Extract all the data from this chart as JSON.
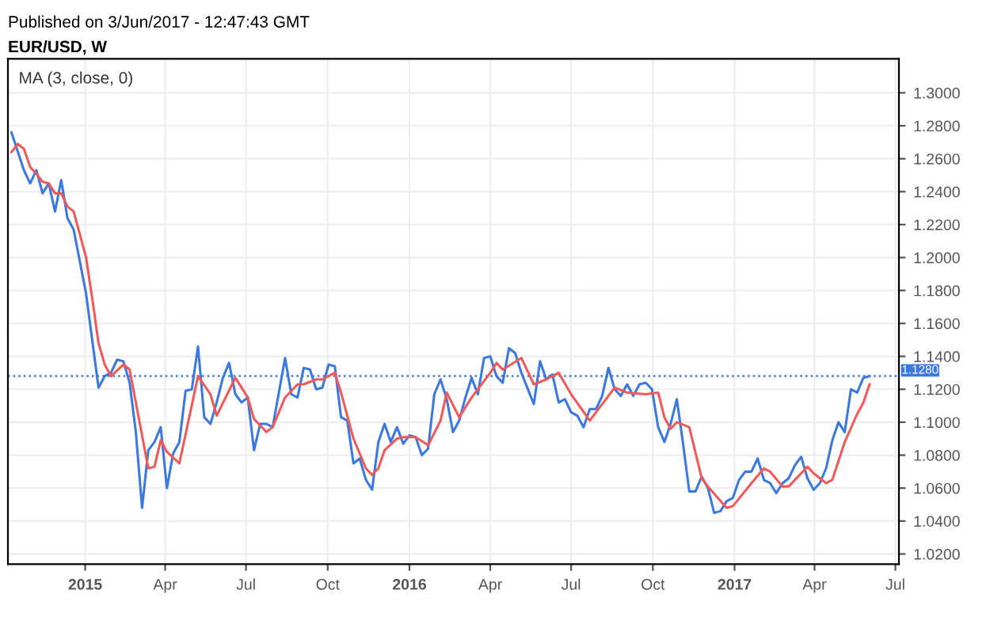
{
  "chart_data": {
    "type": "line",
    "title": "Published on 3/Jun/2017 - 12:47:43 GMT",
    "subtitle": "EUR/USD, W",
    "annotations": [
      "MA (3, close, 0)"
    ],
    "series": [
      {
        "color": "#3b78e0",
        "x": [
          "2014-10-10",
          "2014-10-24",
          "2014-10-31",
          "2014-11-07",
          "2014-11-14",
          "2014-11-21",
          "2014-11-28",
          "2014-12-05",
          "2014-12-12",
          "2014-12-19",
          "2015-01-02",
          "2015-01-16",
          "2015-01-23",
          "2015-01-30",
          "2015-02-06",
          "2015-02-13",
          "2015-02-20",
          "2015-02-27",
          "2015-03-06",
          "2015-03-13",
          "2015-03-20",
          "2015-03-27",
          "2015-04-03",
          "2015-04-10",
          "2015-04-17",
          "2015-04-24",
          "2015-05-01",
          "2015-05-08",
          "2015-05-15",
          "2015-05-22",
          "2015-05-29",
          "2015-06-05",
          "2015-06-12",
          "2015-06-19",
          "2015-06-26",
          "2015-07-03",
          "2015-07-10",
          "2015-07-17",
          "2015-07-24",
          "2015-07-31",
          "2015-08-07",
          "2015-08-14",
          "2015-08-21",
          "2015-08-28",
          "2015-09-04",
          "2015-09-11",
          "2015-09-18",
          "2015-09-25",
          "2015-10-02",
          "2015-10-09",
          "2015-10-16",
          "2015-10-23",
          "2015-10-30",
          "2015-11-06",
          "2015-11-13",
          "2015-11-20",
          "2015-11-27",
          "2015-12-04",
          "2015-12-11",
          "2015-12-18",
          "2015-12-25",
          "2016-01-01",
          "2016-01-08",
          "2016-01-15",
          "2016-01-22",
          "2016-01-29",
          "2016-02-05",
          "2016-02-12",
          "2016-02-19",
          "2016-02-26",
          "2016-03-04",
          "2016-03-11",
          "2016-03-18",
          "2016-03-25",
          "2016-04-01",
          "2016-04-08",
          "2016-04-15",
          "2016-04-22",
          "2016-04-29",
          "2016-05-06",
          "2016-05-20",
          "2016-05-27",
          "2016-06-03",
          "2016-06-10",
          "2016-06-17",
          "2016-06-24",
          "2016-07-01",
          "2016-07-08",
          "2016-07-15",
          "2016-07-22",
          "2016-07-29",
          "2016-08-05",
          "2016-08-12",
          "2016-08-19",
          "2016-08-26",
          "2016-09-02",
          "2016-09-09",
          "2016-09-16",
          "2016-09-23",
          "2016-09-30",
          "2016-10-07",
          "2016-10-14",
          "2016-10-21",
          "2016-10-28",
          "2016-11-04",
          "2016-11-11",
          "2016-11-18",
          "2016-11-25",
          "2016-12-02",
          "2016-12-09",
          "2016-12-16",
          "2016-12-23",
          "2016-12-30",
          "2017-01-06",
          "2017-01-13",
          "2017-01-20",
          "2017-01-27",
          "2017-02-03",
          "2017-02-10",
          "2017-02-17",
          "2017-02-24",
          "2017-03-03",
          "2017-03-10",
          "2017-03-17",
          "2017-03-24",
          "2017-03-31",
          "2017-04-07",
          "2017-04-14",
          "2017-04-21",
          "2017-04-28",
          "2017-05-05",
          "2017-05-12",
          "2017-05-19",
          "2017-05-26",
          "2017-06-02"
        ],
        "values": [
          1.276,
          1.253,
          1.245,
          1.253,
          1.239,
          1.245,
          1.228,
          1.247,
          1.224,
          1.217,
          1.178,
          1.121,
          1.128,
          1.13,
          1.138,
          1.137,
          1.124,
          1.094,
          1.048,
          1.083,
          1.088,
          1.097,
          1.06,
          1.081,
          1.088,
          1.119,
          1.12,
          1.146,
          1.103,
          1.099,
          1.112,
          1.127,
          1.136,
          1.117,
          1.112,
          1.115,
          1.083,
          1.099,
          1.099,
          1.097,
          1.118,
          1.139,
          1.117,
          1.115,
          1.133,
          1.132,
          1.12,
          1.121,
          1.135,
          1.134,
          1.103,
          1.101,
          1.075,
          1.078,
          1.065,
          1.059,
          1.088,
          1.099,
          1.088,
          1.097,
          1.087,
          1.092,
          1.091,
          1.08,
          1.084,
          1.117,
          1.126,
          1.114,
          1.094,
          1.101,
          1.115,
          1.127,
          1.117,
          1.139,
          1.14,
          1.128,
          1.124,
          1.145,
          1.142,
          1.13,
          1.111,
          1.137,
          1.126,
          1.129,
          1.112,
          1.114,
          1.106,
          1.104,
          1.097,
          1.108,
          1.108,
          1.116,
          1.133,
          1.12,
          1.116,
          1.123,
          1.116,
          1.123,
          1.124,
          1.12,
          1.097,
          1.088,
          1.099,
          1.114,
          1.087,
          1.058,
          1.058,
          1.067,
          1.06,
          1.045,
          1.046,
          1.052,
          1.054,
          1.065,
          1.07,
          1.07,
          1.078,
          1.065,
          1.063,
          1.057,
          1.063,
          1.066,
          1.074,
          1.079,
          1.066,
          1.059,
          1.063,
          1.072,
          1.089,
          1.1,
          1.094,
          1.12,
          1.118,
          1.127,
          1.128
        ]
      },
      {
        "color": "#f25a5a",
        "x": [
          "2014-10-10",
          "2014-10-17",
          "2014-10-24",
          "2014-10-31",
          "2014-11-07",
          "2014-11-14",
          "2014-11-21",
          "2014-11-28",
          "2014-12-05",
          "2014-12-12",
          "2014-12-19",
          "2015-01-02",
          "2015-01-09",
          "2015-01-16",
          "2015-01-23",
          "2015-01-30",
          "2015-02-13",
          "2015-02-20",
          "2015-02-27",
          "2015-03-13",
          "2015-03-20",
          "2015-03-27",
          "2015-04-03",
          "2015-04-17",
          "2015-05-08",
          "2015-05-22",
          "2015-05-29",
          "2015-06-19",
          "2015-07-03",
          "2015-07-10",
          "2015-07-24",
          "2015-07-31",
          "2015-08-14",
          "2015-08-28",
          "2015-09-04",
          "2015-09-18",
          "2015-09-25",
          "2015-10-09",
          "2015-10-16",
          "2015-10-30",
          "2015-11-13",
          "2015-11-20",
          "2015-11-27",
          "2015-12-04",
          "2015-12-18",
          "2015-12-25",
          "2016-01-08",
          "2016-01-22",
          "2016-02-05",
          "2016-02-12",
          "2016-02-26",
          "2016-03-11",
          "2016-04-01",
          "2016-04-08",
          "2016-04-15",
          "2016-05-06",
          "2016-05-20",
          "2016-06-03",
          "2016-06-17",
          "2016-07-01",
          "2016-07-22",
          "2016-07-29",
          "2016-08-19",
          "2016-09-02",
          "2016-09-23",
          "2016-10-07",
          "2016-10-14",
          "2016-10-21",
          "2016-10-28",
          "2016-11-11",
          "2016-11-25",
          "2016-12-02",
          "2016-12-23",
          "2016-12-30",
          "2017-01-20",
          "2017-02-03",
          "2017-02-10",
          "2017-02-24",
          "2017-03-03",
          "2017-03-24",
          "2017-03-31",
          "2017-04-14",
          "2017-04-21",
          "2017-05-05",
          "2017-05-19",
          "2017-05-26",
          "2017-06-02"
        ],
        "values": [
          1.264,
          1.269,
          1.266,
          1.255,
          1.251,
          1.246,
          1.245,
          1.239,
          1.239,
          1.231,
          1.228,
          1.2,
          1.175,
          1.148,
          1.135,
          1.128,
          1.135,
          1.132,
          1.112,
          1.072,
          1.073,
          1.089,
          1.082,
          1.075,
          1.128,
          1.117,
          1.104,
          1.127,
          1.115,
          1.102,
          1.094,
          1.097,
          1.115,
          1.123,
          1.123,
          1.126,
          1.126,
          1.13,
          1.118,
          1.09,
          1.072,
          1.068,
          1.072,
          1.083,
          1.09,
          1.091,
          1.091,
          1.086,
          1.101,
          1.118,
          1.103,
          1.115,
          1.13,
          1.136,
          1.132,
          1.139,
          1.123,
          1.126,
          1.13,
          1.117,
          1.101,
          1.106,
          1.121,
          1.118,
          1.117,
          1.118,
          1.103,
          1.096,
          1.1,
          1.097,
          1.066,
          1.061,
          1.048,
          1.049,
          1.063,
          1.072,
          1.07,
          1.061,
          1.061,
          1.073,
          1.069,
          1.063,
          1.065,
          1.088,
          1.105,
          1.112,
          1.123
        ]
      }
    ],
    "ref_lines": [
      {
        "axis": "y",
        "value": 1.128,
        "label": "1.1280",
        "color": "#3b78e0",
        "line_style": "dotted"
      }
    ],
    "xlim": [
      "2014-10-06",
      "2017-07-05"
    ],
    "xticks": [
      {
        "value": "2015-01-01",
        "label": "2015"
      },
      {
        "value": "2015-04-01",
        "label": "Apr"
      },
      {
        "value": "2015-07-01",
        "label": "Jul"
      },
      {
        "value": "2015-10-01",
        "label": "Oct"
      },
      {
        "value": "2016-01-01",
        "label": "2016"
      },
      {
        "value": "2016-04-01",
        "label": "Apr"
      },
      {
        "value": "2016-07-01",
        "label": "Jul"
      },
      {
        "value": "2016-10-01",
        "label": "Oct"
      },
      {
        "value": "2017-01-01",
        "label": "2017"
      },
      {
        "value": "2017-04-01",
        "label": "Apr"
      },
      {
        "value": "2017-07-01",
        "label": "Jul"
      }
    ],
    "ylim": [
      1.0138,
      1.3206
    ],
    "yticks": [
      {
        "value": 1.02,
        "label": "1.0200"
      },
      {
        "value": 1.04,
        "label": "1.0400"
      },
      {
        "value": 1.06,
        "label": "1.0600"
      },
      {
        "value": 1.08,
        "label": "1.0800"
      },
      {
        "value": 1.1,
        "label": "1.1000"
      },
      {
        "value": 1.12,
        "label": "1.1200"
      },
      {
        "value": 1.14,
        "label": "1.1400"
      },
      {
        "value": 1.16,
        "label": "1.1600"
      },
      {
        "value": 1.18,
        "label": "1.1800"
      },
      {
        "value": 1.2,
        "label": "1.2000"
      },
      {
        "value": 1.22,
        "label": "1.2200"
      },
      {
        "value": 1.24,
        "label": "1.2400"
      },
      {
        "value": 1.26,
        "label": "1.2600"
      },
      {
        "value": 1.28,
        "label": "1.2800"
      },
      {
        "value": 1.3,
        "label": "1.3000"
      }
    ],
    "grid": true,
    "line_style": "solid",
    "marker": "none"
  }
}
